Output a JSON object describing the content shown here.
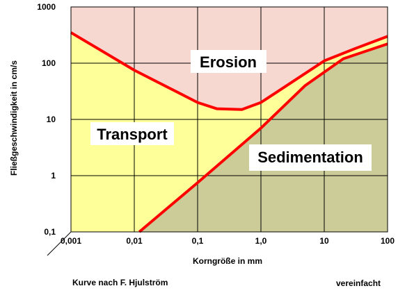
{
  "chart_data": {
    "type": "area",
    "xscale": "log",
    "yscale": "log",
    "xlim": [
      0.001,
      100
    ],
    "ylim": [
      0.1,
      1000
    ],
    "grid": true,
    "xticks": [
      "0,001",
      "0,01",
      "0,1",
      "1,0",
      "10",
      "100"
    ],
    "yticks": [
      "0,1",
      "1",
      "10",
      "100",
      "1000"
    ],
    "xlabel": "Korngröße in mm",
    "ylabel": "Fließgeschwindigkeit  in cm/s",
    "regions": [
      "Erosion",
      "Transport",
      "Sedimentation"
    ],
    "curves": [
      {
        "name": "Erosion",
        "x": [
          0.001,
          0.01,
          0.1,
          0.2,
          0.5,
          1,
          3,
          10,
          30,
          100
        ],
        "y": [
          350,
          75,
          20,
          15.5,
          15,
          20,
          45,
          110,
          180,
          300
        ]
      },
      {
        "name": "Transport",
        "x": [
          0.001,
          0.01,
          0.1,
          0.2,
          0.5,
          1,
          3,
          10,
          30,
          100
        ],
        "y": [
          350,
          75,
          20,
          15.5,
          15,
          20,
          45,
          110,
          180,
          300
        ]
      },
      {
        "name": "Sedimentation",
        "x": [
          0.012,
          0.1,
          1,
          5,
          20,
          100
        ],
        "y": [
          0.1,
          0.75,
          7,
          40,
          120,
          220
        ]
      }
    ],
    "colors": {
      "erosion_fill": "#f7d8d0",
      "transport_fill": "#ffff99",
      "sedimentation_fill": "#cccc99",
      "curve": "#ff0000",
      "grid": "#000000"
    }
  },
  "footer": {
    "source": "Kurve nach F. Hjulström",
    "note": "vereinfacht"
  }
}
